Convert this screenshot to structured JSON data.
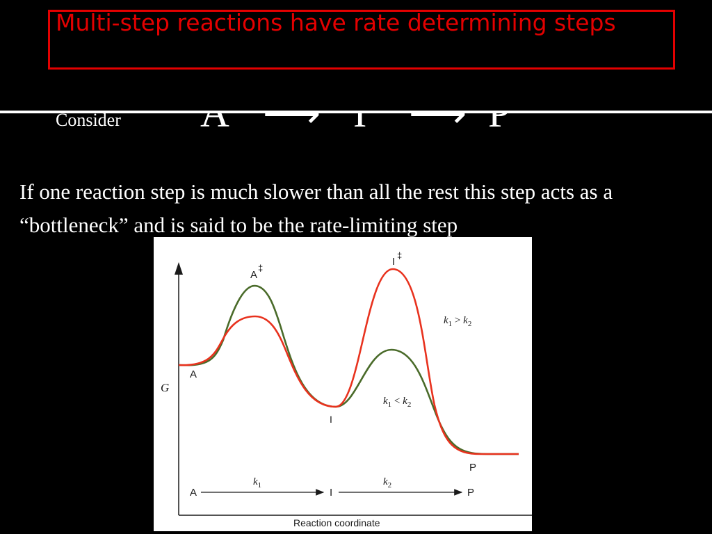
{
  "slide": {
    "title": "Multi-step reactions have rate determining steps",
    "consider_label": "Consider",
    "equation": {
      "species": [
        "A",
        "I",
        "P"
      ],
      "arrows": [
        "⟶",
        "⟶"
      ]
    },
    "paragraph": "If one reaction step is much slower than all the rest this step acts as a “bottleneck” and is said to be the rate-limiting step"
  },
  "figure": {
    "y_axis_label": "G",
    "x_axis_label": "Reaction coordinate",
    "point_labels": {
      "reactant": "A",
      "intermediate": "I",
      "product": "P",
      "ts1": "A",
      "ts2": "I",
      "ts_mark": "‡"
    },
    "curve_labels": {
      "k1_gt_k2": {
        "k": "k",
        "s1": "1",
        "op": " > ",
        "s2": "2"
      },
      "k1_lt_k2": {
        "k": "k",
        "s1": "1",
        "op": " < ",
        "s2": "2"
      }
    },
    "scheme": {
      "start": "A",
      "middle": "I",
      "end": "P",
      "k1": {
        "k": "k",
        "sub": "1"
      },
      "k2": {
        "k": "k",
        "sub": "2"
      }
    },
    "colors": {
      "red_curve": "#e8321e",
      "green_curve": "#4a6b2a",
      "axis": "#1a1a1a"
    }
  }
}
